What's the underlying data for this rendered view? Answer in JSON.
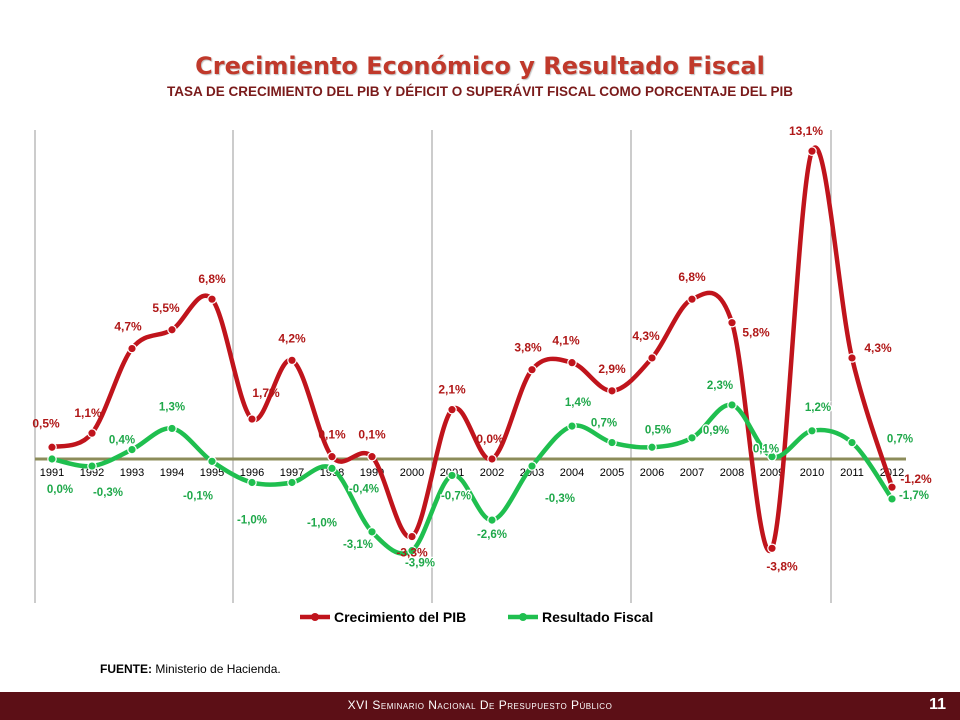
{
  "header": {
    "title": "Crecimiento Económico y Resultado Fiscal",
    "subtitle": "TASA DE CRECIMIENTO DEL PIB Y DÉFICIT O SUPERÁVIT FISCAL COMO PORCENTAJE DEL PIB"
  },
  "source": {
    "label": "FUENTE:",
    "text": " Ministerio de Hacienda."
  },
  "footer": {
    "text": "XVI Seminario Nacional De Presupuesto Público",
    "page_number": "11"
  },
  "colors": {
    "pib": "#c0141c",
    "fiscal": "#1fbf4f",
    "baseline": "#8c8c5a",
    "footer_bg": "#5c0f16",
    "title": "#c0392b"
  },
  "chart_data": {
    "type": "line",
    "categories": [
      "1991",
      "1992",
      "1993",
      "1994",
      "1995",
      "1996",
      "1997",
      "1998",
      "1999",
      "2000",
      "2001",
      "2002",
      "2003",
      "2004",
      "2005",
      "2006",
      "2007",
      "2008",
      "2009",
      "2010",
      "2011",
      "2012"
    ],
    "series": [
      {
        "name": "Crecimiento del PIB",
        "values": [
          0.5,
          1.1,
          4.7,
          5.5,
          6.8,
          1.7,
          4.2,
          0.1,
          0.1,
          -3.3,
          2.1,
          0.0,
          3.8,
          4.1,
          2.9,
          4.3,
          6.8,
          5.8,
          -3.8,
          13.1,
          4.3,
          -1.2
        ],
        "labels": [
          "0,5%",
          "1,1%",
          "4,7%",
          "5,5%",
          "6,8%",
          "1,7%",
          "4,2%",
          "0,1%",
          "0,1%",
          "-3,3%",
          "2,1%",
          "0,0%",
          "3,8%",
          "4,1%",
          "2,9%",
          "4,3%",
          "6,8%",
          "5,8%",
          "-3,8%",
          "13,1%",
          "4,3%",
          "-1,2%"
        ]
      },
      {
        "name": "Resultado Fiscal",
        "values": [
          0.0,
          -0.3,
          0.4,
          1.3,
          -0.1,
          -1.0,
          -1.0,
          -0.4,
          -3.1,
          -3.9,
          -0.7,
          -2.6,
          -0.3,
          1.4,
          0.7,
          0.5,
          0.9,
          2.3,
          0.1,
          1.2,
          0.7,
          -1.7
        ],
        "labels": [
          "0,0%",
          "-0,3%",
          "0,4%",
          "1,3%",
          "-0,1%",
          "-1,0%",
          "-1,0%",
          "-0,4%",
          "-3,1%",
          "-3,9%",
          "-0,7%",
          "-2,6%",
          "-0,3%",
          "1,4%",
          "0,7%",
          "0,5%",
          "0,9%",
          "2,3%",
          "0,1%",
          "1,2%",
          "0,7%",
          "-1,7%"
        ]
      }
    ],
    "ylim": [
      -6.5,
      14.5
    ],
    "legend": "bottom-center",
    "grid": "vertical separators"
  }
}
